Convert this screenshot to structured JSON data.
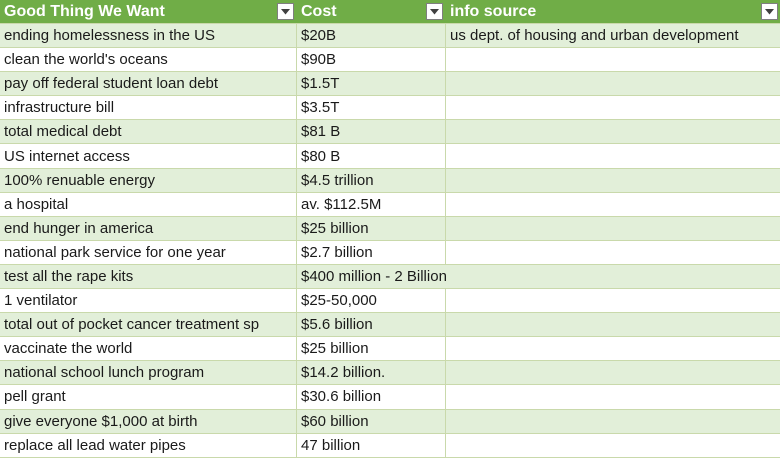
{
  "headers": {
    "col1": "Good Thing We Want",
    "col2": "Cost",
    "col3": "info source"
  },
  "icons": {
    "filter": "dropdown-arrow-icon"
  },
  "colors": {
    "header_bg": "#70ad47",
    "band_bg": "#e2efd9",
    "border": "#c9d9ab"
  },
  "rows": [
    {
      "thing": "ending homelessness in the US",
      "cost": "$20B",
      "source": "us dept. of housing and urban development"
    },
    {
      "thing": "clean the world's oceans",
      "cost": "$90B",
      "source": ""
    },
    {
      "thing": "pay off federal student loan debt",
      "cost": "$1.5T",
      "source": ""
    },
    {
      "thing": "infrastructure bill",
      "cost": "$3.5T",
      "source": ""
    },
    {
      "thing": "total medical debt",
      "cost": "$81 B",
      "source": ""
    },
    {
      "thing": "US internet access",
      "cost": "$80 B",
      "source": ""
    },
    {
      "thing": "100% renuable energy",
      "cost": "$4.5 trillion",
      "source": ""
    },
    {
      "thing": "a hospital",
      "cost": "av. $112.5M",
      "source": ""
    },
    {
      "thing": "end hunger in america",
      "cost": "$25 billion",
      "source": ""
    },
    {
      "thing": "national park service for one year",
      "cost": "$2.7 billion",
      "source": ""
    },
    {
      "thing": "test all the rape kits",
      "cost": "$400 million - 2 Billion",
      "source": ""
    },
    {
      "thing": "1 ventilator",
      "cost": "$25-50,000",
      "source": ""
    },
    {
      "thing": "total out of pocket cancer treatment sp",
      "cost": "$5.6 billion",
      "source": ""
    },
    {
      "thing": "vaccinate the world",
      "cost": "$25 billion",
      "source": ""
    },
    {
      "thing": "national school lunch program",
      "cost": "$14.2 billion.",
      "source": ""
    },
    {
      "thing": "pell grant",
      "cost": "$30.6 billion",
      "source": ""
    },
    {
      "thing": "give everyone $1,000 at birth",
      "cost": "$60 billion",
      "source": ""
    },
    {
      "thing": "replace all lead water pipes",
      "cost": "47 billion",
      "source": ""
    }
  ]
}
